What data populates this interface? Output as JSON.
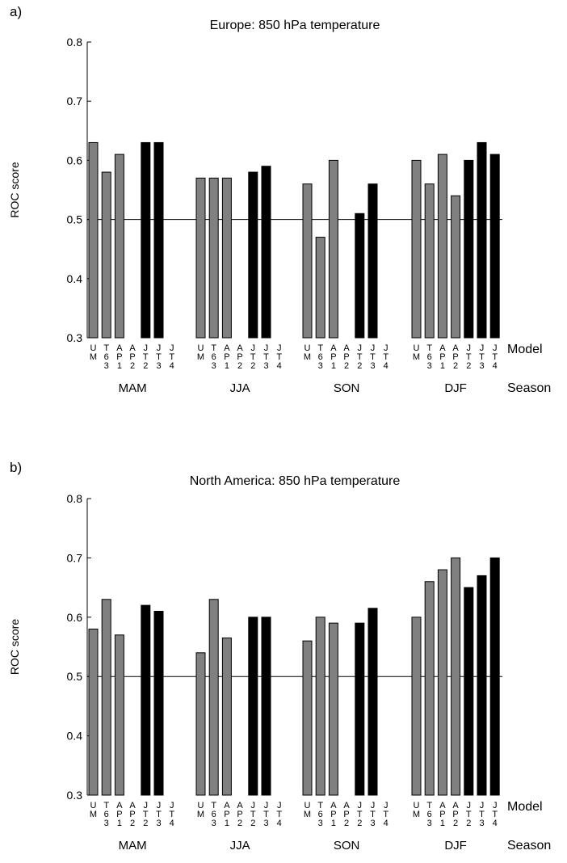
{
  "chart_data": [
    {
      "type": "bar",
      "panel_label": "a)",
      "title": "Europe: 850 hPa temperature",
      "ylabel": "ROC score",
      "ylim": [
        0.3,
        0.8
      ],
      "yticks": [
        "0.3",
        "0.4",
        "0.5",
        "0.6",
        "0.7",
        "0.8"
      ],
      "reference_line": 0.5,
      "model_row_label": "Model",
      "season_row_label": "Season",
      "models": [
        {
          "lines": [
            "U",
            "M",
            ""
          ]
        },
        {
          "lines": [
            "T",
            "6",
            "3"
          ]
        },
        {
          "lines": [
            "A",
            "P",
            "1"
          ]
        },
        {
          "lines": [
            "A",
            "P",
            "2"
          ]
        },
        {
          "lines": [
            "J",
            "T",
            "2"
          ]
        },
        {
          "lines": [
            "J",
            "T",
            "3"
          ]
        },
        {
          "lines": [
            "J",
            "T",
            "4"
          ]
        }
      ],
      "seasons": [
        {
          "name": "MAM",
          "values": [
            0.63,
            0.58,
            0.61,
            null,
            0.63,
            0.63,
            null
          ]
        },
        {
          "name": "JJA",
          "values": [
            0.57,
            0.57,
            0.57,
            null,
            0.58,
            0.59,
            null
          ]
        },
        {
          "name": "SON",
          "values": [
            0.56,
            0.47,
            0.6,
            null,
            0.51,
            0.56,
            null
          ]
        },
        {
          "name": "DJF",
          "values": [
            0.6,
            0.56,
            0.61,
            0.54,
            0.6,
            0.63,
            0.61
          ]
        }
      ],
      "colors": {
        "group1": "#808080",
        "group2": "#000000"
      }
    },
    {
      "type": "bar",
      "panel_label": "b)",
      "title": "North America: 850 hPa temperature",
      "ylabel": "ROC score",
      "ylim": [
        0.3,
        0.8
      ],
      "yticks": [
        "0.3",
        "0.4",
        "0.5",
        "0.6",
        "0.7",
        "0.8"
      ],
      "reference_line": 0.5,
      "model_row_label": "Model",
      "season_row_label": "Season",
      "models": [
        {
          "lines": [
            "U",
            "M",
            ""
          ]
        },
        {
          "lines": [
            "T",
            "6",
            "3"
          ]
        },
        {
          "lines": [
            "A",
            "P",
            "1"
          ]
        },
        {
          "lines": [
            "A",
            "P",
            "2"
          ]
        },
        {
          "lines": [
            "J",
            "T",
            "2"
          ]
        },
        {
          "lines": [
            "J",
            "T",
            "3"
          ]
        },
        {
          "lines": [
            "J",
            "T",
            "4"
          ]
        }
      ],
      "seasons": [
        {
          "name": "MAM",
          "values": [
            0.58,
            0.63,
            0.57,
            null,
            0.62,
            0.61,
            null
          ]
        },
        {
          "name": "JJA",
          "values": [
            0.54,
            0.63,
            0.565,
            null,
            0.6,
            0.6,
            null
          ]
        },
        {
          "name": "SON",
          "values": [
            0.56,
            0.6,
            0.59,
            null,
            0.59,
            0.615,
            null
          ]
        },
        {
          "name": "DJF",
          "values": [
            0.6,
            0.66,
            0.68,
            0.7,
            0.65,
            0.67,
            0.7
          ]
        }
      ],
      "colors": {
        "group1": "#808080",
        "group2": "#000000"
      }
    }
  ]
}
